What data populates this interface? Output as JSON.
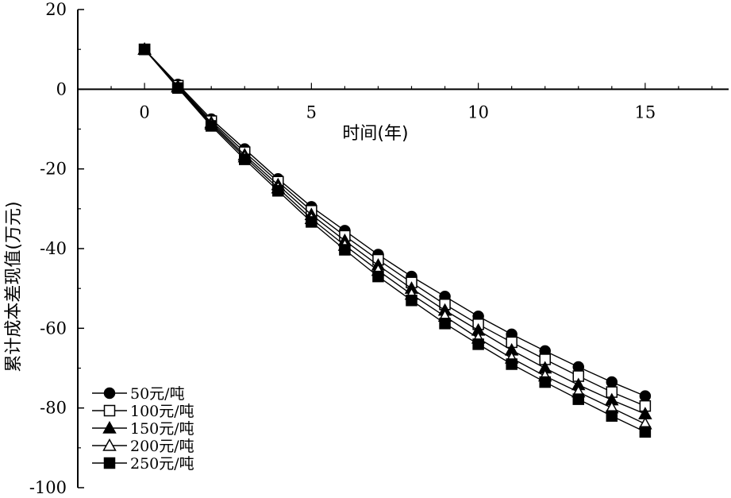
{
  "chart_data": {
    "type": "line",
    "xlabel": "时间(年)",
    "ylabel": "累计成本差现值(万元)",
    "xlim": [
      -2,
      17.5
    ],
    "ylim": [
      -100,
      20
    ],
    "x_ticks": [
      0,
      5,
      10,
      15
    ],
    "y_ticks": [
      20,
      0,
      -20,
      -40,
      -60,
      -80,
      -100
    ],
    "x_tick_labels": [
      "0",
      "5",
      "10",
      "15"
    ],
    "y_tick_labels": [
      "20",
      "0",
      "-20",
      "-40",
      "-60",
      "-80",
      "-100"
    ],
    "grid": false,
    "legend_position": "bottom-left",
    "x": [
      0,
      1,
      2,
      3,
      4,
      5,
      6,
      7,
      8,
      9,
      10,
      11,
      12,
      13,
      14,
      15
    ],
    "series": [
      {
        "name": "50元/吨",
        "marker": "circle-filled",
        "values": [
          10,
          1.2,
          -7.5,
          -15,
          -22.5,
          -29.5,
          -35.5,
          -41.5,
          -47,
          -52,
          -57,
          -61.5,
          -65.7,
          -69.7,
          -73.5,
          -77
        ]
      },
      {
        "name": "100元/吨",
        "marker": "square-open",
        "values": [
          10,
          0.9,
          -8,
          -15.8,
          -23.2,
          -30.5,
          -36.8,
          -42.8,
          -48.5,
          -54,
          -59,
          -63.5,
          -67.8,
          -72,
          -76,
          -79.5
        ]
      },
      {
        "name": "150元/吨",
        "marker": "triangle-filled",
        "values": [
          10,
          0.7,
          -8.4,
          -16.5,
          -24,
          -31.5,
          -38,
          -44.2,
          -50,
          -55.5,
          -60.5,
          -65.5,
          -70,
          -74.2,
          -78,
          -81.5
        ]
      },
      {
        "name": "200元/吨",
        "marker": "triangle-open",
        "values": [
          10,
          0.5,
          -8.8,
          -17,
          -24.8,
          -32.5,
          -39.2,
          -45.5,
          -51.5,
          -57,
          -62.5,
          -67.5,
          -72,
          -76,
          -80,
          -84
        ]
      },
      {
        "name": "250元/吨",
        "marker": "square-filled",
        "values": [
          10,
          0.3,
          -9.2,
          -17.6,
          -25.5,
          -33.3,
          -40.3,
          -47,
          -53,
          -58.8,
          -64,
          -69,
          -73.5,
          -77.8,
          -82,
          -86
        ]
      }
    ]
  }
}
